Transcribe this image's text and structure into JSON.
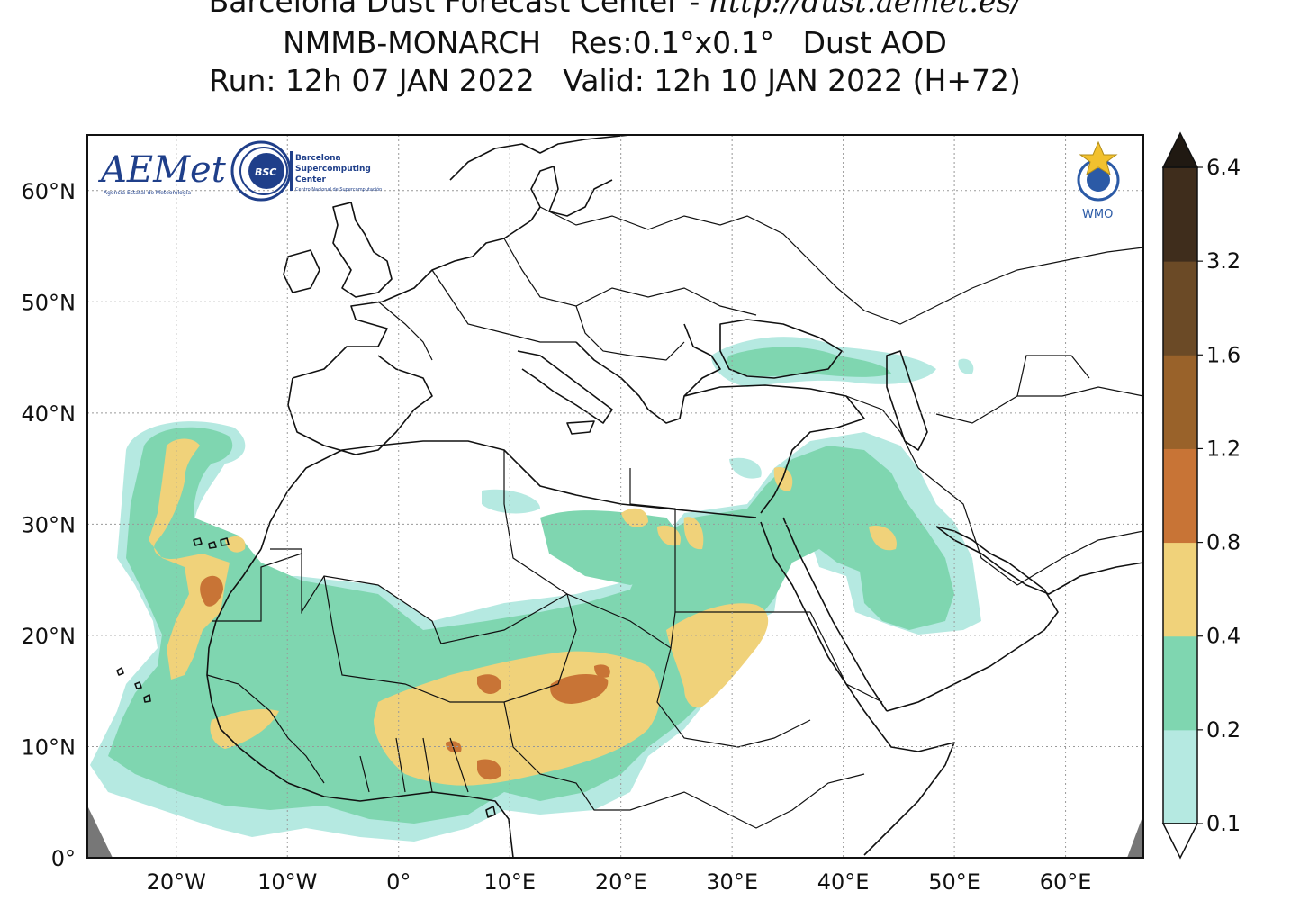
{
  "title": {
    "line1_prefix": "Barcelona Dust Forecast Center - ",
    "line1_url": "http://dust.aemet.es/",
    "line2": "NMMB-MONARCH   Res:0.1°x0.1°   Dust AOD",
    "line3": "Run: 12h 07 JAN 2022   Valid: 12h 10 JAN 2022 (H+72)"
  },
  "map": {
    "lon_range": [
      -28,
      67
    ],
    "lat_range": [
      0,
      65
    ],
    "lon_ticks": [
      {
        "value": -20,
        "label": "20°W"
      },
      {
        "value": -10,
        "label": "10°W"
      },
      {
        "value": 0,
        "label": "0°"
      },
      {
        "value": 10,
        "label": "10°E"
      },
      {
        "value": 20,
        "label": "20°E"
      },
      {
        "value": 30,
        "label": "30°E"
      },
      {
        "value": 40,
        "label": "40°E"
      },
      {
        "value": 50,
        "label": "50°E"
      },
      {
        "value": 60,
        "label": "60°E"
      }
    ],
    "lat_ticks": [
      {
        "value": 0,
        "label": "0°"
      },
      {
        "value": 10,
        "label": "10°N"
      },
      {
        "value": 20,
        "label": "20°N"
      },
      {
        "value": 30,
        "label": "30°N"
      },
      {
        "value": 40,
        "label": "40°N"
      },
      {
        "value": 50,
        "label": "50°N"
      },
      {
        "value": 60,
        "label": "60°N"
      }
    ],
    "grid": "dotted"
  },
  "colorbar": {
    "variable": "Dust AOD",
    "levels": [
      {
        "label": "0.1",
        "color": "#b5e9e1"
      },
      {
        "label": "0.2",
        "color": "#7fd6b0"
      },
      {
        "label": "0.4",
        "color": "#f0d27a"
      },
      {
        "label": "0.8",
        "color": "#c87436"
      },
      {
        "label": "1.2",
        "color": "#99622a"
      },
      {
        "label": "1.6",
        "color": "#6b4a26"
      },
      {
        "label": "3.2",
        "color": "#3f2d1c"
      },
      {
        "label": "6.4",
        "color": "#201912"
      }
    ],
    "extend": "both",
    "upper_extend_color": "#201912"
  },
  "logos": {
    "aemet": "AEMet",
    "aemet_sub": "Agencia Estatal de Meteorología",
    "bsc": "BSC",
    "bsc_text_1": "Barcelona",
    "bsc_text_2": "Supercomputing",
    "bsc_text_3": "Center",
    "bsc_sub": "Centro Nacional de Supercomputación",
    "wmo": "WMO"
  },
  "colors": {
    "frame": "#111111",
    "land_outline": "#111111",
    "grid": "#999999",
    "nodata": "#777777"
  }
}
